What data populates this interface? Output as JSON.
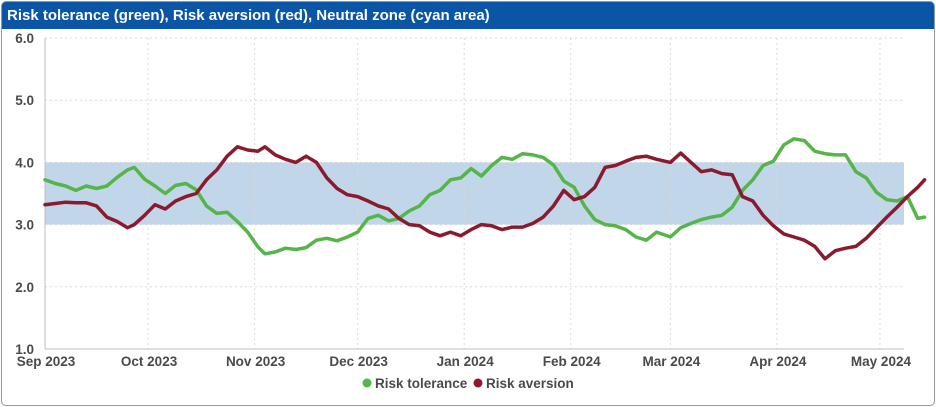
{
  "title": "Risk tolerance (green), Risk aversion (red), Neutral zone (cyan area)",
  "colors": {
    "header_bg": "#0a55a6",
    "tolerance": "#55b548",
    "aversion": "#8b1a2e",
    "neutral": "#c2d6ea"
  },
  "chart_data": {
    "type": "line",
    "title": "Risk tolerance (green), Risk aversion (red), Neutral zone (cyan area)",
    "x_start": "2023-09-01",
    "x_end": "2024-05-08",
    "x_ticks": [
      {
        "date": "2023-09-01",
        "label": "Sep 2023"
      },
      {
        "date": "2023-10-01",
        "label": "Oct 2023"
      },
      {
        "date": "2023-11-01",
        "label": "Nov 2023"
      },
      {
        "date": "2023-12-01",
        "label": "Dec 2023"
      },
      {
        "date": "2024-01-01",
        "label": "Jan 2024"
      },
      {
        "date": "2024-02-01",
        "label": "Feb 2024"
      },
      {
        "date": "2024-03-01",
        "label": "Mar 2024"
      },
      {
        "date": "2024-04-01",
        "label": "Apr 2024"
      },
      {
        "date": "2024-05-01",
        "label": "May 2024"
      }
    ],
    "y_ticks": [
      "1.0",
      "2.0",
      "3.0",
      "4.0",
      "5.0",
      "6.0"
    ],
    "ylim": [
      1,
      6
    ],
    "grid": true,
    "legend": "bottom",
    "neutral_zone": [
      3.0,
      4.0
    ],
    "series": [
      {
        "name": "Risk tolerance",
        "color": "#55b548",
        "points": [
          [
            "2023-09-01",
            3.72
          ],
          [
            "2023-09-04",
            3.66
          ],
          [
            "2023-09-07",
            3.62
          ],
          [
            "2023-09-10",
            3.55
          ],
          [
            "2023-09-13",
            3.62
          ],
          [
            "2023-09-16",
            3.58
          ],
          [
            "2023-09-19",
            3.62
          ],
          [
            "2023-09-22",
            3.76
          ],
          [
            "2023-09-25",
            3.88
          ],
          [
            "2023-09-27",
            3.92
          ],
          [
            "2023-09-30",
            3.73
          ],
          [
            "2023-10-03",
            3.62
          ],
          [
            "2023-10-06",
            3.5
          ],
          [
            "2023-10-09",
            3.63
          ],
          [
            "2023-10-12",
            3.66
          ],
          [
            "2023-10-15",
            3.56
          ],
          [
            "2023-10-18",
            3.3
          ],
          [
            "2023-10-21",
            3.18
          ],
          [
            "2023-10-24",
            3.2
          ],
          [
            "2023-10-27",
            3.05
          ],
          [
            "2023-10-30",
            2.88
          ],
          [
            "2023-11-02",
            2.64
          ],
          [
            "2023-11-04",
            2.53
          ],
          [
            "2023-11-07",
            2.56
          ],
          [
            "2023-11-10",
            2.62
          ],
          [
            "2023-11-13",
            2.6
          ],
          [
            "2023-11-16",
            2.63
          ],
          [
            "2023-11-19",
            2.75
          ],
          [
            "2023-11-22",
            2.78
          ],
          [
            "2023-11-25",
            2.74
          ],
          [
            "2023-11-28",
            2.8
          ],
          [
            "2023-12-01",
            2.88
          ],
          [
            "2023-12-04",
            3.1
          ],
          [
            "2023-12-07",
            3.15
          ],
          [
            "2023-12-10",
            3.06
          ],
          [
            "2023-12-13",
            3.1
          ],
          [
            "2023-12-16",
            3.22
          ],
          [
            "2023-12-19",
            3.3
          ],
          [
            "2023-12-22",
            3.48
          ],
          [
            "2023-12-25",
            3.55
          ],
          [
            "2023-12-28",
            3.72
          ],
          [
            "2023-12-31",
            3.75
          ],
          [
            "2024-01-03",
            3.9
          ],
          [
            "2024-01-06",
            3.78
          ],
          [
            "2024-01-09",
            3.95
          ],
          [
            "2024-01-12",
            4.08
          ],
          [
            "2024-01-15",
            4.05
          ],
          [
            "2024-01-18",
            4.14
          ],
          [
            "2024-01-21",
            4.12
          ],
          [
            "2024-01-24",
            4.08
          ],
          [
            "2024-01-27",
            3.96
          ],
          [
            "2024-01-30",
            3.7
          ],
          [
            "2024-02-02",
            3.6
          ],
          [
            "2024-02-05",
            3.3
          ],
          [
            "2024-02-08",
            3.08
          ],
          [
            "2024-02-11",
            3.0
          ],
          [
            "2024-02-14",
            2.98
          ],
          [
            "2024-02-17",
            2.92
          ],
          [
            "2024-02-20",
            2.8
          ],
          [
            "2024-02-23",
            2.75
          ],
          [
            "2024-02-26",
            2.88
          ],
          [
            "2024-03-01",
            2.8
          ],
          [
            "2024-03-04",
            2.95
          ],
          [
            "2024-03-07",
            3.02
          ],
          [
            "2024-03-10",
            3.08
          ],
          [
            "2024-03-13",
            3.12
          ],
          [
            "2024-03-16",
            3.15
          ],
          [
            "2024-03-19",
            3.28
          ],
          [
            "2024-03-22",
            3.55
          ],
          [
            "2024-03-25",
            3.72
          ],
          [
            "2024-03-28",
            3.95
          ],
          [
            "2024-03-31",
            4.02
          ],
          [
            "2024-04-03",
            4.28
          ],
          [
            "2024-04-06",
            4.38
          ],
          [
            "2024-04-09",
            4.35
          ],
          [
            "2024-04-12",
            4.18
          ],
          [
            "2024-04-15",
            4.14
          ],
          [
            "2024-04-18",
            4.12
          ],
          [
            "2024-04-21",
            4.12
          ],
          [
            "2024-04-24",
            3.85
          ],
          [
            "2024-04-27",
            3.75
          ],
          [
            "2024-04-30",
            3.52
          ],
          [
            "2024-05-03",
            3.4
          ],
          [
            "2024-05-06",
            3.38
          ],
          [
            "2024-05-09",
            3.45
          ],
          [
            "2024-05-12",
            3.1
          ],
          [
            "2024-05-14",
            3.12
          ]
        ]
      },
      {
        "name": "Risk aversion",
        "color": "#8b1a2e",
        "points": [
          [
            "2023-09-01",
            3.32
          ],
          [
            "2023-09-04",
            3.34
          ],
          [
            "2023-09-07",
            3.36
          ],
          [
            "2023-09-10",
            3.35
          ],
          [
            "2023-09-13",
            3.35
          ],
          [
            "2023-09-16",
            3.3
          ],
          [
            "2023-09-19",
            3.12
          ],
          [
            "2023-09-22",
            3.05
          ],
          [
            "2023-09-25",
            2.95
          ],
          [
            "2023-09-27",
            3.0
          ],
          [
            "2023-09-30",
            3.15
          ],
          [
            "2023-10-03",
            3.32
          ],
          [
            "2023-10-06",
            3.25
          ],
          [
            "2023-10-09",
            3.38
          ],
          [
            "2023-10-12",
            3.45
          ],
          [
            "2023-10-15",
            3.5
          ],
          [
            "2023-10-18",
            3.72
          ],
          [
            "2023-10-21",
            3.88
          ],
          [
            "2023-10-24",
            4.1
          ],
          [
            "2023-10-27",
            4.25
          ],
          [
            "2023-10-30",
            4.2
          ],
          [
            "2023-11-02",
            4.18
          ],
          [
            "2023-11-04",
            4.25
          ],
          [
            "2023-11-07",
            4.12
          ],
          [
            "2023-11-10",
            4.05
          ],
          [
            "2023-11-13",
            4.0
          ],
          [
            "2023-11-16",
            4.1
          ],
          [
            "2023-11-19",
            4.0
          ],
          [
            "2023-11-22",
            3.75
          ],
          [
            "2023-11-25",
            3.58
          ],
          [
            "2023-11-28",
            3.48
          ],
          [
            "2023-12-01",
            3.45
          ],
          [
            "2023-12-04",
            3.38
          ],
          [
            "2023-12-07",
            3.3
          ],
          [
            "2023-12-10",
            3.25
          ],
          [
            "2023-12-13",
            3.1
          ],
          [
            "2023-12-16",
            3.0
          ],
          [
            "2023-12-19",
            2.98
          ],
          [
            "2023-12-22",
            2.88
          ],
          [
            "2023-12-25",
            2.82
          ],
          [
            "2023-12-28",
            2.88
          ],
          [
            "2023-12-31",
            2.82
          ],
          [
            "2024-01-03",
            2.92
          ],
          [
            "2024-01-06",
            3.0
          ],
          [
            "2024-01-09",
            2.98
          ],
          [
            "2024-01-12",
            2.92
          ],
          [
            "2024-01-15",
            2.96
          ],
          [
            "2024-01-18",
            2.96
          ],
          [
            "2024-01-21",
            3.02
          ],
          [
            "2024-01-24",
            3.12
          ],
          [
            "2024-01-27",
            3.3
          ],
          [
            "2024-01-30",
            3.55
          ],
          [
            "2024-02-02",
            3.4
          ],
          [
            "2024-02-05",
            3.45
          ],
          [
            "2024-02-08",
            3.6
          ],
          [
            "2024-02-11",
            3.92
          ],
          [
            "2024-02-14",
            3.95
          ],
          [
            "2024-02-17",
            4.02
          ],
          [
            "2024-02-20",
            4.08
          ],
          [
            "2024-02-23",
            4.1
          ],
          [
            "2024-02-26",
            4.05
          ],
          [
            "2024-03-01",
            4.0
          ],
          [
            "2024-03-04",
            4.15
          ],
          [
            "2024-03-07",
            4.0
          ],
          [
            "2024-03-10",
            3.85
          ],
          [
            "2024-03-13",
            3.88
          ],
          [
            "2024-03-16",
            3.82
          ],
          [
            "2024-03-19",
            3.8
          ],
          [
            "2024-03-22",
            3.45
          ],
          [
            "2024-03-25",
            3.38
          ],
          [
            "2024-03-28",
            3.15
          ],
          [
            "2024-03-31",
            2.98
          ],
          [
            "2024-04-03",
            2.85
          ],
          [
            "2024-04-06",
            2.8
          ],
          [
            "2024-04-09",
            2.75
          ],
          [
            "2024-04-12",
            2.65
          ],
          [
            "2024-04-15",
            2.45
          ],
          [
            "2024-04-18",
            2.58
          ],
          [
            "2024-04-21",
            2.62
          ],
          [
            "2024-04-24",
            2.65
          ],
          [
            "2024-04-27",
            2.78
          ],
          [
            "2024-04-30",
            2.95
          ],
          [
            "2024-05-03",
            3.12
          ],
          [
            "2024-05-06",
            3.28
          ],
          [
            "2024-05-09",
            3.45
          ],
          [
            "2024-05-12",
            3.6
          ],
          [
            "2024-05-14",
            3.72
          ]
        ]
      }
    ]
  }
}
